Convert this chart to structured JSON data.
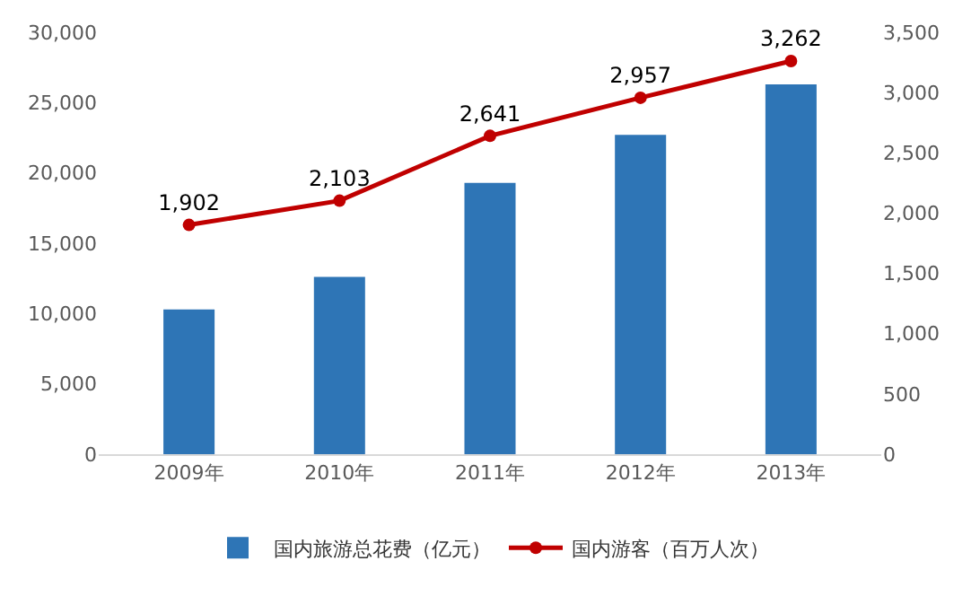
{
  "chart_data": {
    "type": "bar",
    "categories": [
      "2009年",
      "2010年",
      "2011年",
      "2012年",
      "2013年"
    ],
    "series": [
      {
        "name": "国内旅游总花费（亿元）",
        "color": "#2e75b6",
        "values": [
          10300,
          12600,
          19300,
          22700,
          26300
        ]
      },
      {
        "name": "国内游客（百万人次）",
        "type": "line",
        "axis": "y2",
        "color": "#c00000",
        "values": [
          1902,
          2103,
          2641,
          2957,
          3262
        ],
        "value_labels": [
          "1,902",
          "2,103",
          "2,641",
          "2,957",
          "3,262"
        ],
        "marker": "circle",
        "line_style": "solid"
      }
    ],
    "ylim": [
      0,
      30000
    ],
    "yticks": [
      {
        "value": 0,
        "label": "0"
      },
      {
        "value": 5000,
        "label": "5,000"
      },
      {
        "value": 10000,
        "label": "10,000"
      },
      {
        "value": 15000,
        "label": "15,000"
      },
      {
        "value": 20000,
        "label": "20,000"
      },
      {
        "value": 25000,
        "label": "25,000"
      },
      {
        "value": 30000,
        "label": "30,000"
      }
    ],
    "y2lim": [
      0,
      3500
    ],
    "y2ticks": [
      {
        "value": 0,
        "label": "0"
      },
      {
        "value": 500,
        "label": "500"
      },
      {
        "value": 1000,
        "label": "1,000"
      },
      {
        "value": 1500,
        "label": "1,500"
      },
      {
        "value": 2000,
        "label": "2,000"
      },
      {
        "value": 2500,
        "label": "2,500"
      },
      {
        "value": 3000,
        "label": "3,000"
      },
      {
        "value": 3500,
        "label": "3,500"
      }
    ],
    "grid": false,
    "legend": "bottom"
  }
}
